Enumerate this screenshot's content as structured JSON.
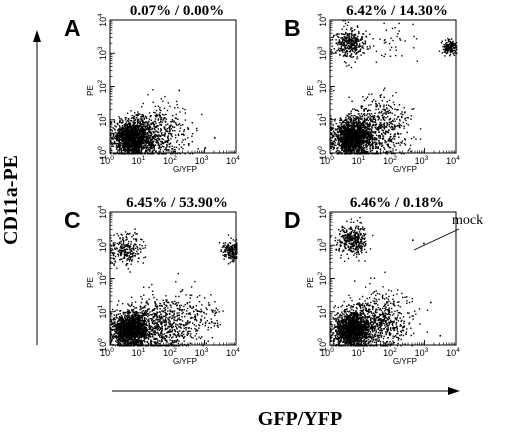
{
  "figure": {
    "ylabel": "CD11a-PE",
    "xlabel": "GFP/YFP"
  },
  "chart_data": [
    {
      "panel": "A",
      "type": "scatter",
      "title": "0.07% / 0.00%",
      "xlabel": "G/YFP",
      "ylabel": "PE",
      "xscale": "log",
      "yscale": "log",
      "xlim": [
        1,
        10000
      ],
      "ylim": [
        1,
        10000
      ],
      "xticks": [
        1,
        10,
        100,
        1000,
        10000
      ],
      "yticks": [
        1,
        10,
        100,
        1000,
        10000
      ],
      "tick_base": "10",
      "tick_exponents": [
        "0",
        "1",
        "2",
        "3",
        "4"
      ],
      "populations": [
        {
          "x": 5,
          "y": 3,
          "spread": 0.3,
          "points": 1500
        },
        {
          "x": 30,
          "y": 4,
          "spread": 0.45,
          "points": 500
        }
      ],
      "scattered_points": [
        [
          300,
          2
        ],
        [
          1000,
          1.5
        ],
        [
          2000,
          3
        ],
        [
          150,
          80
        ],
        [
          60,
          1.3
        ]
      ]
    },
    {
      "panel": "B",
      "type": "scatter",
      "title": "6.42% / 14.30%",
      "xlabel": "G/YFP",
      "ylabel": "PE",
      "xscale": "log",
      "yscale": "log",
      "xlim": [
        1,
        10000
      ],
      "ylim": [
        1,
        10000
      ],
      "xticks": [
        1,
        10,
        100,
        1000,
        10000
      ],
      "yticks": [
        1,
        10,
        100,
        1000,
        10000
      ],
      "tick_base": "10",
      "tick_exponents": [
        "0",
        "1",
        "2",
        "3",
        "4"
      ],
      "populations": [
        {
          "x": 5,
          "y": 3,
          "spread": 0.3,
          "points": 1500
        },
        {
          "x": 30,
          "y": 6,
          "spread": 0.5,
          "points": 600
        },
        {
          "x": 4,
          "y": 2000,
          "spread": 0.25,
          "points": 350
        },
        {
          "x": 6000,
          "y": 1500,
          "spread": 0.12,
          "points": 150
        },
        {
          "x": 100,
          "y": 2000,
          "spread": 0.4,
          "points": 40
        }
      ],
      "scattered_points": []
    },
    {
      "panel": "C",
      "type": "scatter",
      "title": "6.45% / 53.90%",
      "xlabel": "G/YFP",
      "ylabel": "PE",
      "xscale": "log",
      "yscale": "log",
      "xlim": [
        1,
        10000
      ],
      "ylim": [
        1,
        10000
      ],
      "xticks": [
        1,
        10,
        100,
        1000,
        10000
      ],
      "yticks": [
        1,
        10,
        100,
        1000,
        10000
      ],
      "tick_base": "10",
      "tick_exponents": [
        "0",
        "1",
        "2",
        "3",
        "4"
      ],
      "populations": [
        {
          "x": 4,
          "y": 3,
          "spread": 0.3,
          "points": 1500
        },
        {
          "x": 40,
          "y": 4,
          "spread": 0.5,
          "points": 700
        },
        {
          "x": 3,
          "y": 800,
          "spread": 0.25,
          "points": 250
        },
        {
          "x": 7000,
          "y": 700,
          "spread": 0.15,
          "points": 200
        },
        {
          "x": 800,
          "y": 8,
          "spread": 0.4,
          "points": 120
        }
      ],
      "scattered_points": []
    },
    {
      "panel": "D",
      "type": "scatter",
      "title": "6.46% / 0.18%",
      "xlabel": "G/YFP",
      "ylabel": "PE",
      "xscale": "log",
      "yscale": "log",
      "xlim": [
        1,
        10000
      ],
      "ylim": [
        1,
        10000
      ],
      "xticks": [
        1,
        10,
        100,
        1000,
        10000
      ],
      "yticks": [
        1,
        10,
        100,
        1000,
        10000
      ],
      "tick_base": "10",
      "tick_exponents": [
        "0",
        "1",
        "2",
        "3",
        "4"
      ],
      "annotation": "mock",
      "populations": [
        {
          "x": 5,
          "y": 3,
          "spread": 0.3,
          "points": 1500
        },
        {
          "x": 30,
          "y": 5,
          "spread": 0.5,
          "points": 650
        },
        {
          "x": 5,
          "y": 1500,
          "spread": 0.25,
          "points": 350
        }
      ],
      "scattered_points": [
        [
          400,
          1500
        ],
        [
          900,
          1200
        ],
        [
          1500,
          20
        ],
        [
          3000,
          2
        ]
      ]
    }
  ]
}
